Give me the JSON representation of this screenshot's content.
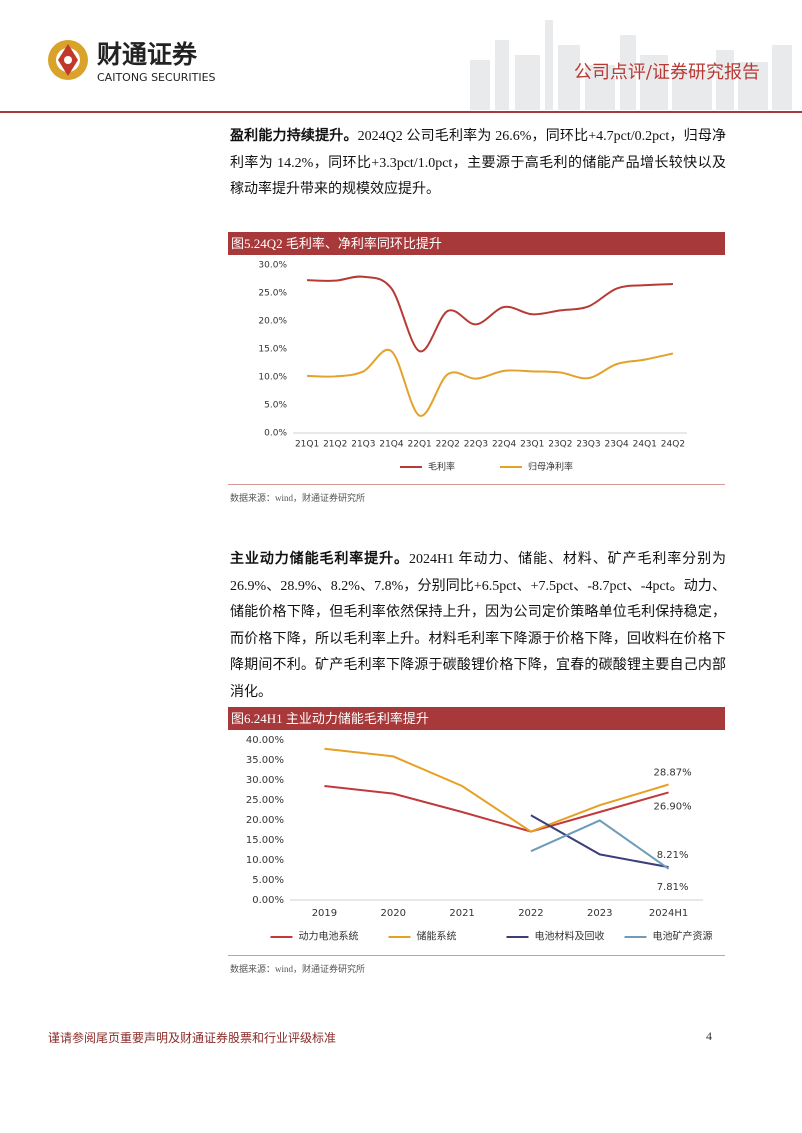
{
  "header": {
    "brand": "财通证券",
    "brand_en": "CAITONG SECURITIES",
    "report_type": "公司点评/证券研究报告"
  },
  "paragraphs": [
    {
      "lead": "盈利能力持续提升。",
      "text": "2024Q2 公司毛利率为 26.6%，同环比+4.7pct/0.2pct，归母净利率为 14.2%，同环比+3.3pct/1.0pct，主要源于高毛利的储能产品增长较快以及稼动率提升带来的规模效应提升。"
    },
    {
      "lead": "主业动力储能毛利率提升。",
      "text": "2024H1 年动力、储能、材料、矿产毛利率分别为 26.9%、28.9%、8.2%、7.8%，分别同比+6.5pct、+7.5pct、-8.7pct、-4pct。动力、储能价格下降，但毛利率依然保持上升，因为公司定价策略单位毛利保持稳定，而价格下降，所以毛利率上升。材料毛利率下降源于价格下降，回收料在价格下降期间不利。矿产毛利率下降源于碳酸锂价格下降，宜春的碳酸锂主要自己内部消化。"
    }
  ],
  "chart_data": [
    {
      "type": "line",
      "title": "图5.24Q2 毛利率、净利率同环比提升",
      "source": "数据来源：wind，财通证券研究所",
      "smooth": true,
      "grid": false,
      "legend": "bottom",
      "categories": [
        "21Q1",
        "21Q2",
        "21Q3",
        "21Q4",
        "22Q1",
        "22Q2",
        "22Q3",
        "22Q4",
        "23Q1",
        "23Q2",
        "23Q3",
        "23Q4",
        "24Q1",
        "24Q2"
      ],
      "series": [
        {
          "name": "毛利率",
          "color": "#b83a35",
          "values": [
            27.3,
            27.2,
            27.9,
            25.8,
            14.6,
            21.8,
            19.4,
            22.5,
            21.2,
            21.9,
            22.6,
            25.8,
            26.4,
            26.6
          ]
        },
        {
          "name": "归母净利率",
          "color": "#e3a229",
          "values": [
            10.2,
            10.1,
            11.0,
            14.6,
            3.1,
            10.5,
            9.7,
            11.1,
            11.0,
            10.8,
            9.8,
            12.3,
            13.1,
            14.2
          ]
        }
      ],
      "ylim": [
        0,
        30
      ],
      "yticks": [
        {
          "value": 0,
          "label": "0.0%"
        },
        {
          "value": 5,
          "label": "5.0%"
        },
        {
          "value": 10,
          "label": "10.0%"
        },
        {
          "value": 15,
          "label": "15.0%"
        },
        {
          "value": 20,
          "label": "20.0%"
        },
        {
          "value": 25,
          "label": "25.0%"
        },
        {
          "value": 30,
          "label": "30.0%"
        }
      ]
    },
    {
      "type": "line",
      "title": "图6.24H1 主业动力储能毛利率提升",
      "source": "数据来源：wind，财通证券研究所",
      "smooth": false,
      "grid": false,
      "legend": "bottom",
      "categories": [
        "2019",
        "2020",
        "2021",
        "2022",
        "2023",
        "2024H1"
      ],
      "series": [
        {
          "name": "动力电池系统",
          "color": "#c0393b",
          "values": [
            28.5,
            26.6,
            22.0,
            17.1,
            22.0,
            26.9
          ],
          "value_labels": [
            null,
            null,
            null,
            null,
            null,
            "26.90%"
          ]
        },
        {
          "name": "储能系统",
          "color": "#e6a023",
          "values": [
            37.8,
            35.9,
            28.5,
            17.1,
            23.7,
            28.87
          ],
          "value_labels": [
            null,
            null,
            null,
            null,
            null,
            "28.87%"
          ]
        },
        {
          "name": "电池材料及回收",
          "color": "#3b3f78",
          "values": [
            null,
            null,
            null,
            21.2,
            11.4,
            8.21
          ],
          "value_labels": [
            null,
            null,
            null,
            null,
            null,
            "8.21%"
          ]
        },
        {
          "name": "电池矿产资源",
          "color": "#6c9cba",
          "values": [
            null,
            null,
            null,
            12.2,
            19.9,
            7.81
          ],
          "value_labels": [
            null,
            null,
            null,
            null,
            null,
            "7.81%"
          ]
        }
      ],
      "ylim": [
        0,
        40
      ],
      "yticks": [
        {
          "value": 0,
          "label": "0.00%"
        },
        {
          "value": 5,
          "label": "5.00%"
        },
        {
          "value": 10,
          "label": "10.00%"
        },
        {
          "value": 15,
          "label": "15.00%"
        },
        {
          "value": 20,
          "label": "20.00%"
        },
        {
          "value": 25,
          "label": "25.00%"
        },
        {
          "value": 30,
          "label": "30.00%"
        },
        {
          "value": 35,
          "label": "35.00%"
        },
        {
          "value": 40,
          "label": "40.00%"
        }
      ]
    }
  ],
  "footer": {
    "disclaimer": "谨请参阅尾页重要声明及财通证券股票和行业评级标准",
    "page": "4"
  }
}
